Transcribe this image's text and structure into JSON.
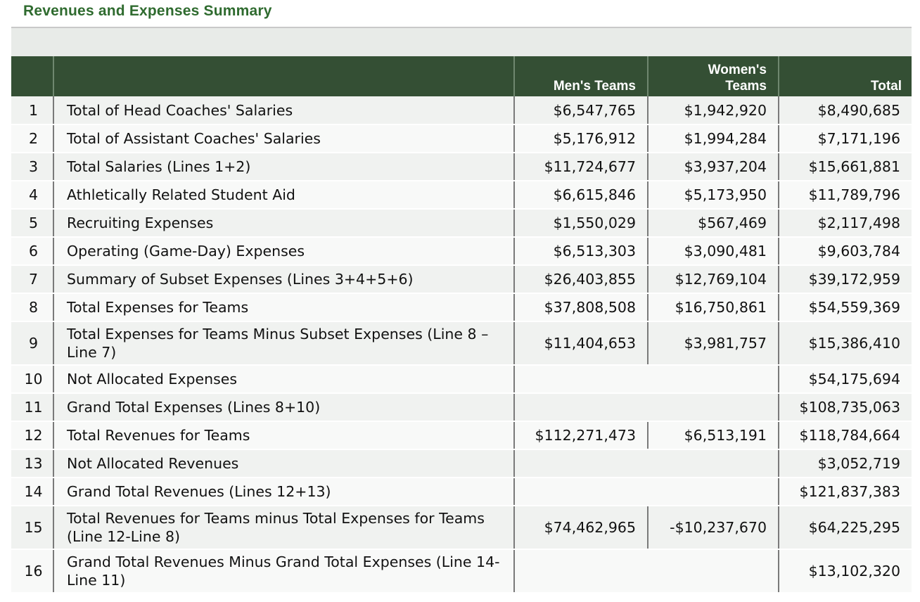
{
  "title": "Revenues and Expenses Summary",
  "columns": {
    "men": "Men's Teams",
    "women_line1": "Women's",
    "women_line2": "Teams",
    "total": "Total"
  },
  "rows": [
    {
      "num": "1",
      "label": "Total of Head Coaches' Salaries",
      "men": "$6,547,765",
      "women": "$1,942,920",
      "total": "$8,490,685"
    },
    {
      "num": "2",
      "label": "Total of Assistant Coaches' Salaries",
      "men": "$5,176,912",
      "women": "$1,994,284",
      "total": "$7,171,196"
    },
    {
      "num": "3",
      "label": "Total Salaries (Lines 1+2)",
      "men": "$11,724,677",
      "women": "$3,937,204",
      "total": "$15,661,881"
    },
    {
      "num": "4",
      "label": "Athletically Related Student Aid",
      "men": "$6,615,846",
      "women": "$5,173,950",
      "total": "$11,789,796"
    },
    {
      "num": "5",
      "label": "Recruiting Expenses",
      "men": "$1,550,029",
      "women": "$567,469",
      "total": "$2,117,498"
    },
    {
      "num": "6",
      "label": "Operating (Game-Day) Expenses",
      "men": "$6,513,303",
      "women": "$3,090,481",
      "total": "$9,603,784"
    },
    {
      "num": "7",
      "label": "Summary of Subset Expenses (Lines 3+4+5+6)",
      "men": "$26,403,855",
      "women": "$12,769,104",
      "total": "$39,172,959"
    },
    {
      "num": "8",
      "label": "Total Expenses for Teams",
      "men": "$37,808,508",
      "women": "$16,750,861",
      "total": "$54,559,369"
    },
    {
      "num": "9",
      "label": "Total Expenses for Teams Minus Subset Expenses (Line 8 – Line 7)",
      "men": "$11,404,653",
      "women": "$3,981,757",
      "total": "$15,386,410"
    },
    {
      "num": "10",
      "label": "Not Allocated Expenses",
      "men": "",
      "women": "",
      "total": "$54,175,694"
    },
    {
      "num": "11",
      "label": "Grand Total Expenses (Lines 8+10)",
      "men": "",
      "women": "",
      "total": "$108,735,063"
    },
    {
      "num": "12",
      "label": "Total Revenues for Teams",
      "men": "$112,271,473",
      "women": "$6,513,191",
      "total": "$118,784,664"
    },
    {
      "num": "13",
      "label": "Not Allocated Revenues",
      "men": "",
      "women": "",
      "total": "$3,052,719"
    },
    {
      "num": "14",
      "label": "Grand Total Revenues (Lines 12+13)",
      "men": "",
      "women": "",
      "total": "$121,837,383"
    },
    {
      "num": "15",
      "label": "Total Revenues for Teams minus Total Expenses for Teams (Line 12-Line 8)",
      "men": "$74,462,965",
      "women": "-$10,237,670",
      "total": "$64,225,295"
    },
    {
      "num": "16",
      "label": "Grand Total Revenues Minus Grand Total Expenses (Line 14- Line 11)",
      "men": "",
      "women": "",
      "total": "$13,102,320"
    }
  ]
}
